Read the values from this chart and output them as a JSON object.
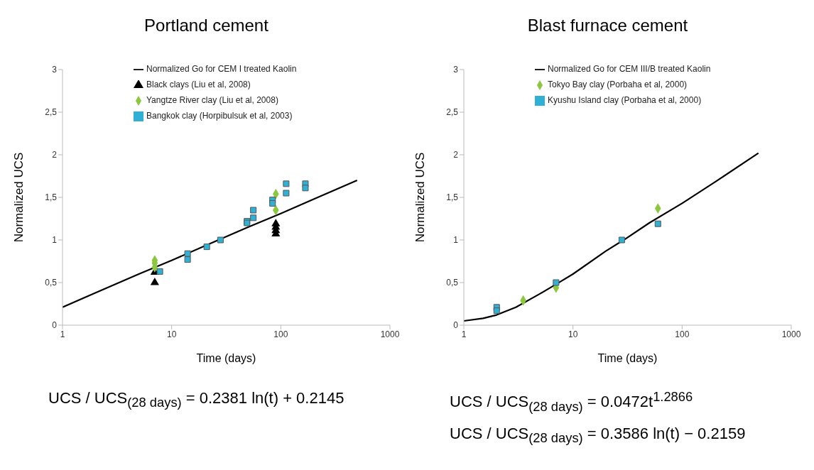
{
  "chart_data": [
    {
      "type": "scatter",
      "title": "Portland cement",
      "xlabel": "Time (days)",
      "ylabel": "Normalized UCS",
      "log": "x",
      "xlim": [
        1,
        1000
      ],
      "xticks": [
        1,
        10,
        100,
        1000
      ],
      "ylim": [
        0,
        3
      ],
      "yticks": [
        0,
        {
          "value": 0.5,
          "label": "0,5"
        },
        1,
        {
          "value": 1.5,
          "label": "1,5"
        },
        2,
        {
          "value": 2.5,
          "label": "2,5"
        },
        3
      ],
      "grid": false,
      "legend": "top",
      "series": [
        {
          "name": "Normalized Go for CEM I treated Kaolin",
          "type": "line",
          "color": "#000000",
          "marker": "none",
          "x": [
            1,
            2,
            5,
            10,
            20,
            50,
            100,
            200,
            500
          ],
          "values": [
            0.21,
            0.38,
            0.6,
            0.76,
            0.93,
            1.15,
            1.31,
            1.48,
            1.7
          ]
        },
        {
          "name": "Black clays (Liu et al, 2008)",
          "color": "#000000",
          "marker": "triangle",
          "x": [
            7,
            7,
            90,
            90,
            90,
            90
          ],
          "values": [
            0.5,
            0.62,
            1.07,
            1.11,
            1.15,
            1.19
          ]
        },
        {
          "name": "Yangtze River clay (Liu et al, 2008)",
          "color": "#8dc63f",
          "marker": "diamond",
          "x": [
            7,
            7,
            7,
            90,
            90
          ],
          "values": [
            0.76,
            0.73,
            0.68,
            1.54,
            1.35
          ]
        },
        {
          "name": "Bangkok clay (Horpibulsuk et al, 2003)",
          "color": "#31b0d5",
          "marker": "square",
          "x": [
            7.8,
            14,
            14,
            21,
            28,
            49,
            49,
            56,
            56,
            84,
            84,
            112,
            112,
            168,
            168
          ],
          "values": [
            0.63,
            0.84,
            0.77,
            0.92,
            1.0,
            1.22,
            1.2,
            1.35,
            1.26,
            1.47,
            1.43,
            1.66,
            1.55,
            1.66,
            1.61
          ]
        }
      ],
      "annotations": [
        "UCS / UCS$_{(28 days)}$ = 0.2381 ln(t) + 0.2145"
      ]
    },
    {
      "type": "scatter",
      "title": "Blast furnace cement",
      "xlabel": "Time (days)",
      "ylabel": "Normalized UCS",
      "log": "x",
      "xlim": [
        1,
        1000
      ],
      "xticks": [
        1,
        10,
        100,
        1000
      ],
      "ylim": [
        0,
        3
      ],
      "yticks": [
        0,
        {
          "value": 0.5,
          "label": "0,5"
        },
        1,
        {
          "value": 1.5,
          "label": "1,5"
        },
        2,
        {
          "value": 2.5,
          "label": "2,5"
        },
        3
      ],
      "grid": false,
      "legend": "top",
      "series": [
        {
          "name": "Normalized Go for CEM III/B treated Kaolin",
          "type": "line",
          "color": "#000000",
          "marker": "none",
          "x": [
            1,
            1.5,
            2,
            3,
            5,
            7,
            10,
            20,
            30,
            50,
            100,
            200,
            500
          ],
          "values": [
            0.05,
            0.08,
            0.12,
            0.21,
            0.37,
            0.48,
            0.6,
            0.87,
            1.01,
            1.2,
            1.43,
            1.68,
            2.02
          ]
        },
        {
          "name": "Tokyo Bay clay (Porbaha et al, 2000)",
          "color": "#8dc63f",
          "marker": "diamond",
          "x": [
            3.5,
            7,
            60
          ],
          "values": [
            0.29,
            0.44,
            1.37
          ]
        },
        {
          "name": "Kyushu Island clay (Porbaha et al, 2000)",
          "color": "#31b0d5",
          "marker": "square",
          "x": [
            2,
            2,
            7,
            28,
            60
          ],
          "values": [
            0.21,
            0.17,
            0.5,
            1.0,
            1.19
          ]
        }
      ],
      "annotations": [
        "UCS / UCS$_{(28 days)}$ = 0.0472t$^{1.2866}$",
        "UCS / UCS$_{(28 days)}$ = 0.3586 ln(t) − 0.2159"
      ]
    }
  ]
}
